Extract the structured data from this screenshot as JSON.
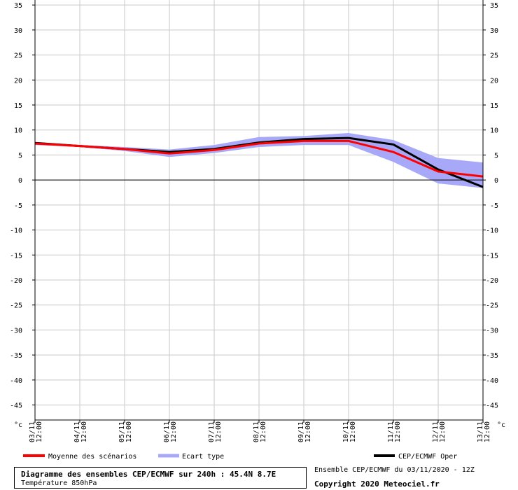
{
  "chart_data": {
    "type": "line",
    "x": [
      "03/11 12:00",
      "04/11 12:00",
      "05/11 12:00",
      "06/11 12:00",
      "07/11 12:00",
      "08/11 12:00",
      "09/11 12:00",
      "10/11 12:00",
      "11/11 12:00",
      "12/11 12:00",
      "13/11 12:00"
    ],
    "x_ticks": [
      {
        "date": "03/11",
        "time": "12:00"
      },
      {
        "date": "04/11",
        "time": "12:00"
      },
      {
        "date": "05/11",
        "time": "12:00"
      },
      {
        "date": "06/11",
        "time": "12:00"
      },
      {
        "date": "07/11",
        "time": "12:00"
      },
      {
        "date": "08/11",
        "time": "12:00"
      },
      {
        "date": "09/11",
        "time": "12:00"
      },
      {
        "date": "10/11",
        "time": "12:00"
      },
      {
        "date": "11/11",
        "time": "12:00"
      },
      {
        "date": "12/11",
        "time": "12:00"
      },
      {
        "date": "13/11",
        "time": "12:00"
      }
    ],
    "y_ticks": [
      35,
      30,
      25,
      20,
      15,
      10,
      5,
      0,
      -5,
      -10,
      -15,
      -20,
      -25,
      -30,
      -35,
      -40,
      -45
    ],
    "ylim": [
      -48,
      36
    ],
    "yunit": "°c",
    "grid": true,
    "series": [
      {
        "name": "Moyenne des scénarios",
        "color": "#ff0000",
        "values": [
          7.3,
          6.8,
          6.2,
          5.3,
          6.0,
          7.3,
          7.8,
          7.8,
          5.6,
          1.7,
          0.7
        ]
      },
      {
        "name": "CEP/ECMWF Oper",
        "color": "#000000",
        "values": [
          7.4,
          6.8,
          6.2,
          5.6,
          6.2,
          7.5,
          8.2,
          8.4,
          7.1,
          2.1,
          -1.4
        ]
      }
    ],
    "band": {
      "name": "Ecart type",
      "color": "#a8a8f8",
      "upper": [
        7.6,
        7.0,
        6.6,
        6.1,
        7.0,
        8.6,
        8.8,
        9.4,
        8.0,
        4.4,
        3.5
      ],
      "lower": [
        7.0,
        6.6,
        5.8,
        4.6,
        5.4,
        6.6,
        7.0,
        7.0,
        3.6,
        -0.7,
        -1.6
      ]
    }
  },
  "legend": {
    "mean_label": "Moyenne des scénarios",
    "band_label": "Ecart type",
    "oper_label": "CEP/ECMWF Oper"
  },
  "info": {
    "title": "Diagramme des ensembles CEP/ECMWF sur 240h : 45.4N 8.7E",
    "subtitle": "Température 850hPa",
    "run": "Ensemble CEP/ECMWF du 03/11/2020 - 12Z",
    "copyright": "Copyright 2020 Meteociel.fr"
  }
}
